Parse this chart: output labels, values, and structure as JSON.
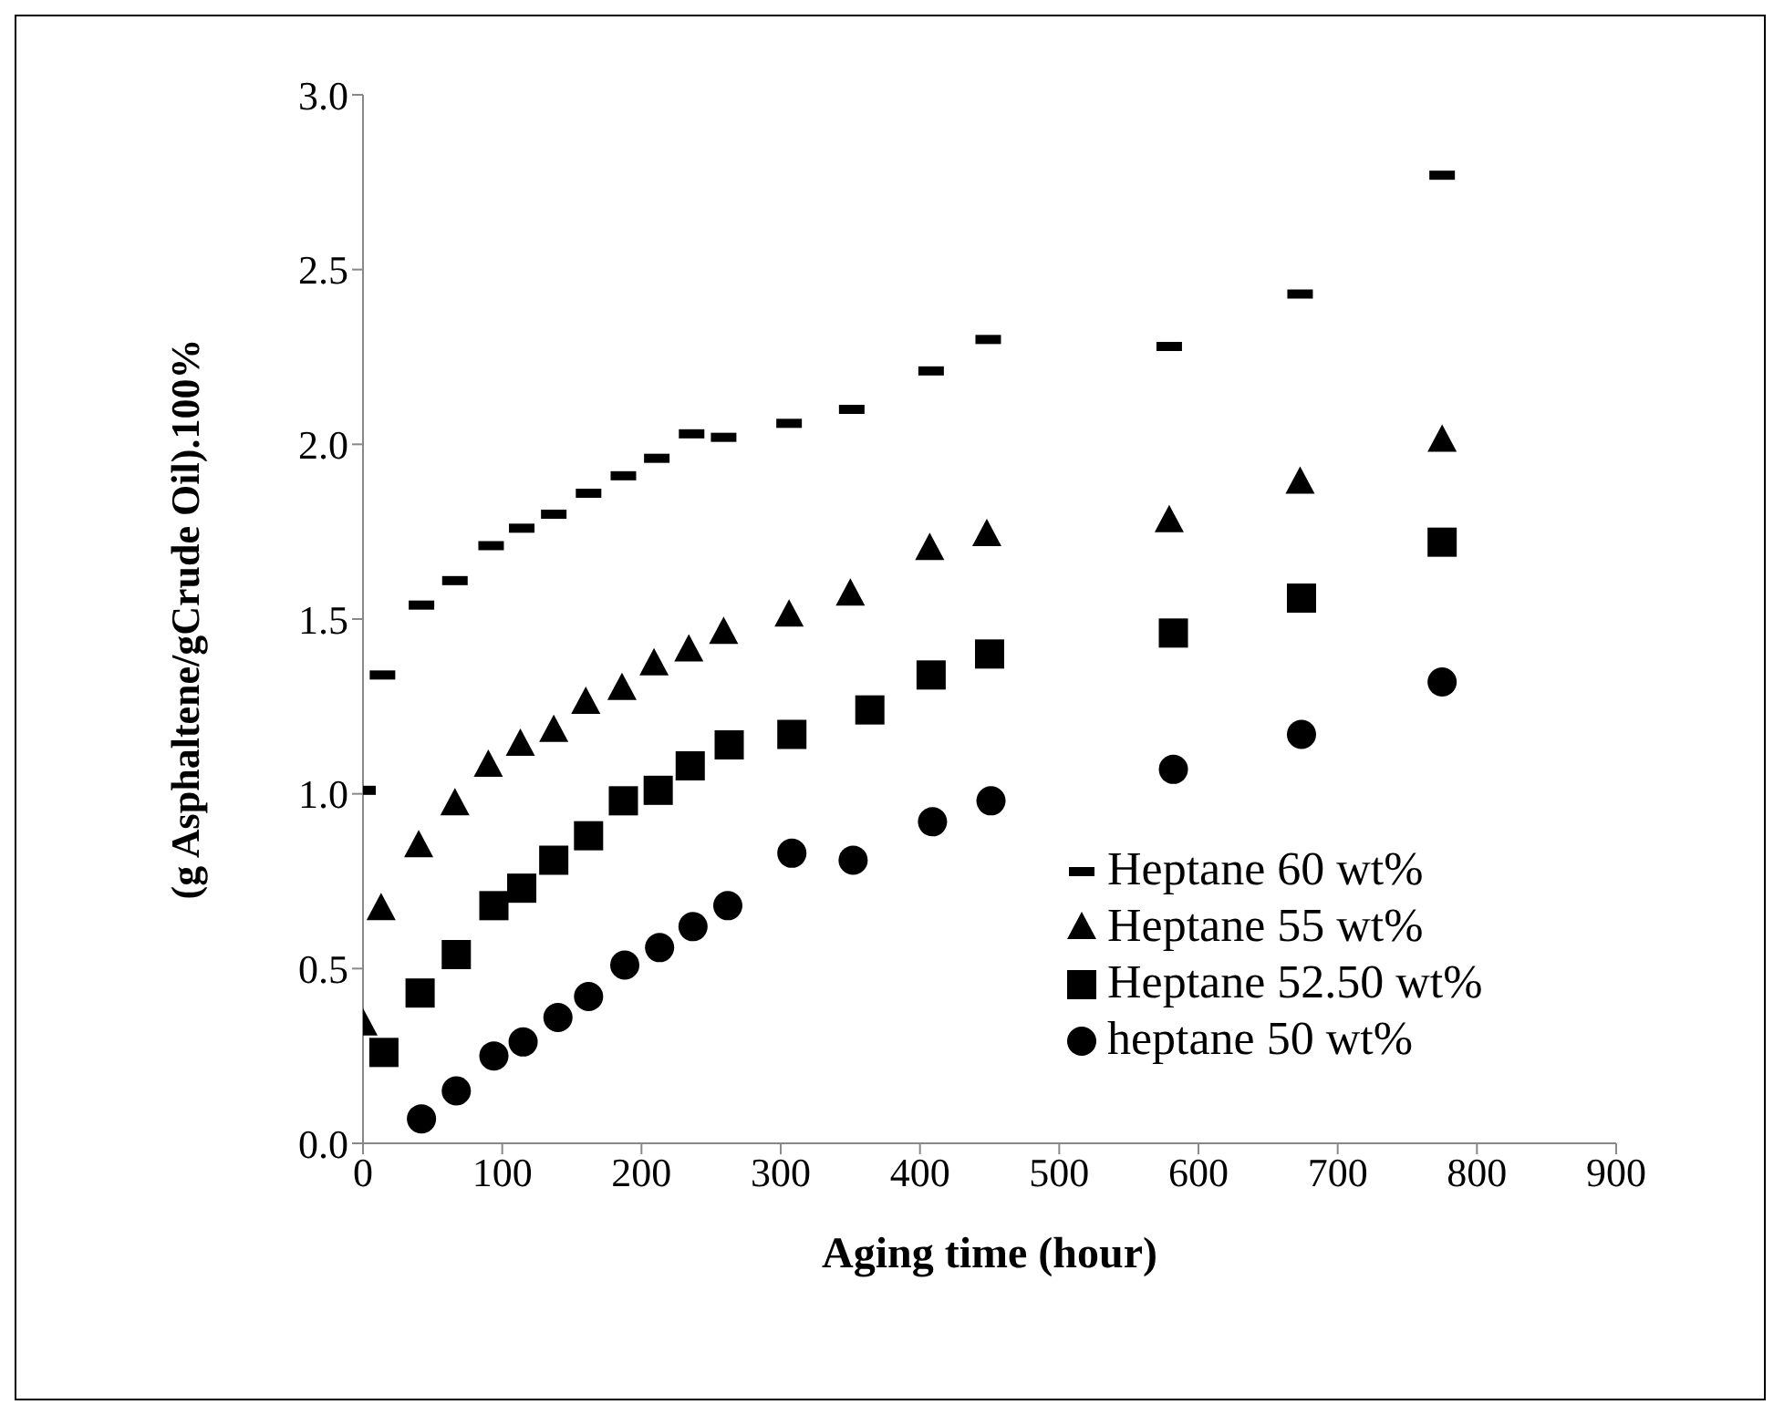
{
  "chart_data": {
    "type": "scatter",
    "xlabel": "Aging time (hour)",
    "ylabel": "(g Asphaltene/gCrude Oil).100%",
    "xlim": [
      0,
      900
    ],
    "xticks": [
      0,
      100,
      200,
      300,
      400,
      500,
      600,
      700,
      800,
      900
    ],
    "ylim": [
      0,
      3
    ],
    "yticks": [
      {
        "value": 0,
        "label": "0.0"
      },
      {
        "value": 0.5,
        "label": "0.5"
      },
      {
        "value": 1,
        "label": "1.0"
      },
      {
        "value": 1.5,
        "label": "1.5"
      },
      {
        "value": 2,
        "label": "2.0"
      },
      {
        "value": 2.5,
        "label": "2.5"
      },
      {
        "value": 3,
        "label": "3.0"
      }
    ],
    "grid": false,
    "legend": "bottom right",
    "series": [
      {
        "name": "Heptane 60 wt%",
        "color": "#000000",
        "x": [
          0,
          14,
          42,
          66,
          92,
          114,
          137,
          162,
          187,
          211,
          236,
          259,
          306,
          351,
          408,
          449,
          579,
          673,
          775
        ],
        "values": [
          1.01,
          1.34,
          1.54,
          1.61,
          1.71,
          1.76,
          1.8,
          1.86,
          1.91,
          1.96,
          2.03,
          2.02,
          2.06,
          2.1,
          2.21,
          2.3,
          2.28,
          2.43,
          2.77
        ]
      },
      {
        "name": "Heptane 55 wt%",
        "color": "#000000",
        "marker": "triangle",
        "x": [
          0,
          13,
          40,
          66,
          90,
          113,
          137,
          160,
          186,
          209,
          234,
          259,
          306,
          350,
          407,
          448,
          579,
          673,
          775
        ],
        "values": [
          0.34,
          0.67,
          0.85,
          0.97,
          1.08,
          1.14,
          1.18,
          1.26,
          1.3,
          1.37,
          1.41,
          1.46,
          1.51,
          1.57,
          1.7,
          1.74,
          1.78,
          1.89,
          2.01
        ]
      },
      {
        "name": "Heptane 52.50 wt%",
        "color": "#000000",
        "marker": "square",
        "x": [
          15,
          41,
          67,
          94,
          114,
          137,
          162,
          187,
          212,
          235,
          263,
          308,
          364,
          408,
          450,
          582,
          674,
          775
        ],
        "values": [
          0.26,
          0.43,
          0.54,
          0.68,
          0.73,
          0.81,
          0.88,
          0.98,
          1.01,
          1.08,
          1.14,
          1.17,
          1.24,
          1.34,
          1.4,
          1.46,
          1.56,
          1.72
        ]
      },
      {
        "name": "heptane 50 wt%",
        "color": "#000000",
        "marker": "circle",
        "x": [
          42,
          67,
          94,
          115,
          140,
          162,
          188,
          213,
          237,
          262,
          308,
          352,
          409,
          451,
          582,
          674,
          775
        ],
        "values": [
          0.07,
          0.15,
          0.25,
          0.29,
          0.36,
          0.42,
          0.51,
          0.56,
          0.62,
          0.68,
          0.83,
          0.81,
          0.92,
          0.98,
          1.07,
          1.17,
          1.32
        ]
      }
    ]
  }
}
